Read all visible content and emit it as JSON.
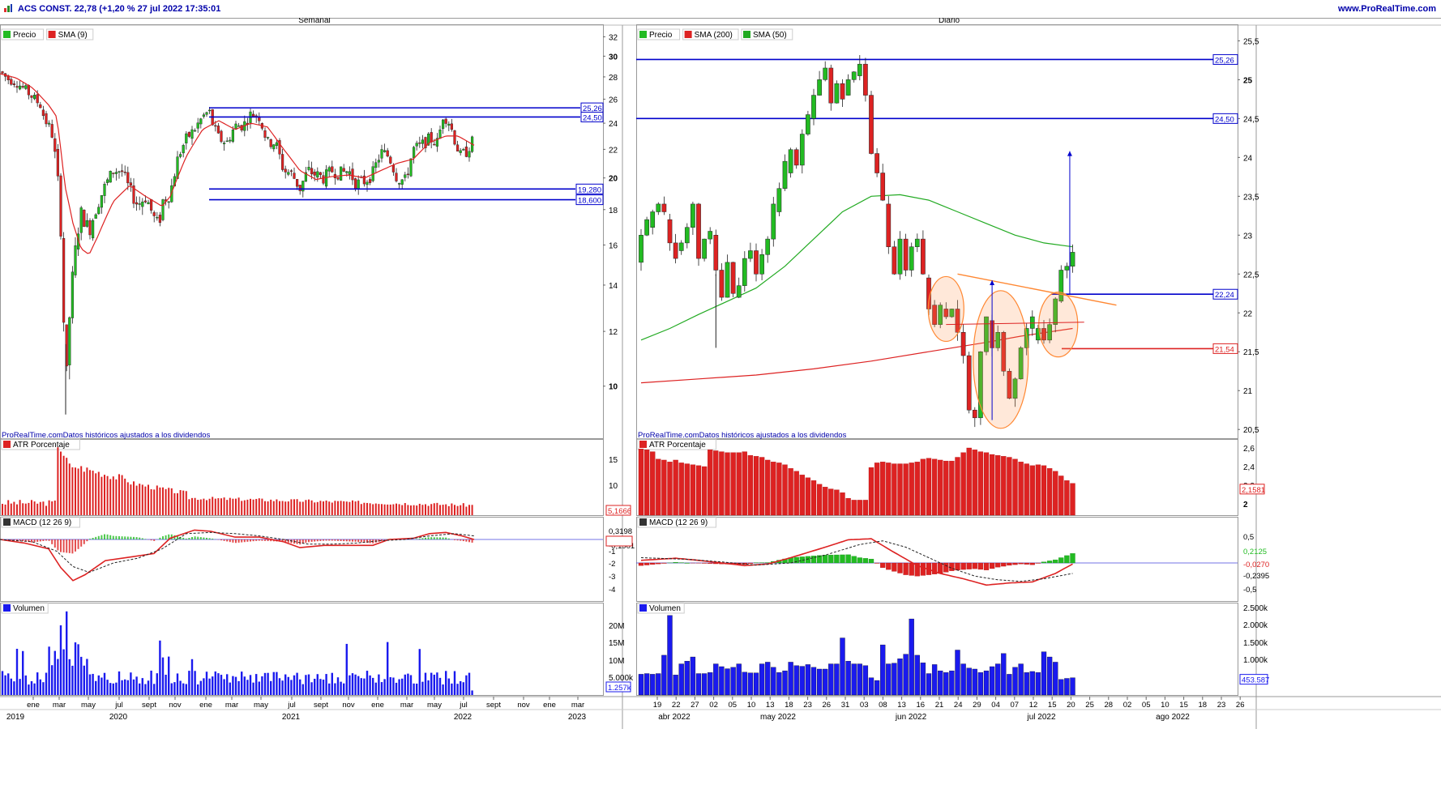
{
  "header": {
    "title": "ACS CONST. 22,78 (+1,20 % 27 jul 2022 17:35:01",
    "site": "www.ProRealTime.com"
  },
  "colors": {
    "up": "#22bb22",
    "down": "#dd2222",
    "sma_red": "#dd2222",
    "sma_green": "#22aa22",
    "levels": "#0000cc",
    "volume": "#1a1aee",
    "orange": "#ff8833"
  },
  "left_panel": {
    "title": "Semanal",
    "legend": [
      "Precio",
      "SMA (9)"
    ],
    "source": "ProRealTime.comDatos históricos ajustados a los dividendos",
    "price_ticks": [
      "32",
      "30",
      "28",
      "26",
      "24",
      "22",
      "20",
      "18",
      "16",
      "14",
      "12",
      "10"
    ],
    "level_labels": [
      "25,26",
      "24,50",
      "19,280",
      "18,600"
    ],
    "atr": {
      "legend": "ATR Porcentaje",
      "ticks": [
        "15",
        "10"
      ],
      "last": "5,1666"
    },
    "macd": {
      "legend": "MACD (12 26 9)",
      "ticks": [
        "0,3198",
        "0,1296",
        "-0,1901",
        "-1",
        "-2",
        "-3",
        "-4"
      ]
    },
    "volume": {
      "legend": "Volumen",
      "ticks": [
        "20M",
        "15M",
        "10M",
        "5.000k"
      ],
      "last": "1.257k"
    },
    "x_months": [
      "ene",
      "mar",
      "may",
      "jul",
      "sept",
      "nov",
      "ene",
      "mar",
      "may",
      "jul",
      "sept",
      "nov",
      "ene",
      "mar",
      "may",
      "jul",
      "sept",
      "nov",
      "ene",
      "mar"
    ],
    "x_years": [
      "2019",
      "2020",
      "2021",
      "2022",
      "2023"
    ]
  },
  "right_panel": {
    "title": "Diario",
    "legend": [
      "Precio",
      "SMA (200)",
      "SMA (50)"
    ],
    "source": "ProRealTime.comDatos históricos ajustados a los dividendos",
    "price_ticks": [
      "25,5",
      "25",
      "24,5",
      "24",
      "23,5",
      "23",
      "22,5",
      "22",
      "21,5",
      "21",
      "20,5"
    ],
    "level_labels": [
      "25,26",
      "24,50",
      "22,24",
      "21,54"
    ],
    "atr": {
      "legend": "ATR Porcentaje",
      "ticks": [
        "2,6",
        "2,4",
        "2,2",
        "2"
      ],
      "last": "2,1581"
    },
    "macd": {
      "legend": "MACD (12 26 9)",
      "ticks": [
        "0,5",
        "0,2125",
        "-0,0270",
        "-0,2395",
        "-0,5"
      ]
    },
    "volume": {
      "legend": "Volumen",
      "ticks": [
        "2.500k",
        "2.000k",
        "1.500k",
        "1.000k"
      ],
      "last": "453.587"
    },
    "x_days": [
      "19",
      "22",
      "27",
      "02",
      "05",
      "10",
      "13",
      "18",
      "23",
      "26",
      "31",
      "03",
      "08",
      "13",
      "16",
      "21",
      "24",
      "29",
      "04",
      "07",
      "12",
      "15",
      "20",
      "25",
      "28",
      "02",
      "05",
      "10",
      "15",
      "18",
      "23",
      "26"
    ],
    "x_months": [
      "abr 2022",
      "may 2022",
      "jun 2022",
      "jul 2022",
      "ago 2022"
    ]
  },
  "chart_data": [
    {
      "type": "candlestick",
      "title": "Semanal",
      "ylim": [
        8.5,
        33
      ],
      "y_scale": "log",
      "levels": [
        25.26,
        24.5,
        19.28,
        18.6
      ],
      "price_path": [
        [
          0,
          28.5
        ],
        [
          10,
          27.8
        ],
        [
          20,
          27.5
        ],
        [
          30,
          26.9
        ],
        [
          40,
          26.2
        ],
        [
          50,
          25.5
        ],
        [
          55,
          24.3
        ],
        [
          60,
          23.8
        ],
        [
          65,
          23
        ],
        [
          70,
          20.5
        ],
        [
          72,
          19.5
        ],
        [
          74,
          17.8
        ],
        [
          76,
          16
        ],
        [
          78,
          13
        ],
        [
          80,
          11.2
        ],
        [
          82,
          10.2
        ],
        [
          84,
          11
        ],
        [
          86,
          12.8
        ],
        [
          88,
          13.8
        ],
        [
          90,
          14.5
        ],
        [
          95,
          16.5
        ],
        [
          100,
          17.8
        ],
        [
          110,
          16.8
        ],
        [
          120,
          18.3
        ],
        [
          130,
          19.5
        ],
        [
          140,
          20.5
        ],
        [
          150,
          20.5
        ],
        [
          160,
          19.2
        ],
        [
          170,
          18.3
        ],
        [
          180,
          18.8
        ],
        [
          190,
          17.5
        ],
        [
          196,
          17
        ],
        [
          200,
          18.5
        ],
        [
          210,
          19
        ],
        [
          220,
          21.5
        ],
        [
          230,
          22.8
        ],
        [
          240,
          23.5
        ],
        [
          250,
          24.5
        ],
        [
          258,
          25
        ],
        [
          262,
          24
        ],
        [
          270,
          22.8
        ],
        [
          280,
          22.5
        ],
        [
          290,
          23.8
        ],
        [
          300,
          23.8
        ],
        [
          310,
          24.8
        ],
        [
          320,
          24.5
        ],
        [
          330,
          22.5
        ],
        [
          340,
          22.5
        ],
        [
          350,
          20.5
        ],
        [
          360,
          20.3
        ],
        [
          370,
          19.3
        ],
        [
          380,
          20.5
        ],
        [
          390,
          20.2
        ],
        [
          400,
          20
        ],
        [
          410,
          20.5
        ],
        [
          420,
          20.3
        ],
        [
          430,
          20.5
        ],
        [
          440,
          19.6
        ],
        [
          450,
          19.8
        ],
        [
          460,
          20.3
        ],
        [
          470,
          21.8
        ],
        [
          480,
          21.5
        ],
        [
          490,
          20
        ],
        [
          500,
          19.8
        ],
        [
          510,
          22
        ],
        [
          520,
          22.3
        ],
        [
          530,
          22.8
        ],
        [
          540,
          22.5
        ],
        [
          547,
          24.7
        ],
        [
          555,
          24
        ],
        [
          562,
          22.5
        ],
        [
          568,
          21.5
        ],
        [
          575,
          21.8
        ],
        [
          585,
          22.8
        ]
      ],
      "sma_path": [
        [
          0,
          28.3
        ],
        [
          20,
          27.9
        ],
        [
          40,
          27
        ],
        [
          60,
          25.5
        ],
        [
          70,
          24.5
        ],
        [
          80,
          19.5
        ],
        [
          90,
          17.2
        ],
        [
          100,
          15.8
        ],
        [
          110,
          15.5
        ],
        [
          120,
          16.4
        ],
        [
          140,
          18.5
        ],
        [
          160,
          19.5
        ],
        [
          180,
          18.8
        ],
        [
          200,
          18.2
        ],
        [
          210,
          18.8
        ],
        [
          230,
          21.5
        ],
        [
          250,
          23.5
        ],
        [
          270,
          24.2
        ],
        [
          290,
          23.5
        ],
        [
          310,
          24
        ],
        [
          330,
          23.7
        ],
        [
          350,
          22
        ],
        [
          370,
          20.5
        ],
        [
          390,
          19.9
        ],
        [
          410,
          20.1
        ],
        [
          430,
          20.2
        ],
        [
          450,
          20
        ],
        [
          470,
          20.5
        ],
        [
          490,
          21
        ],
        [
          510,
          21.3
        ],
        [
          530,
          22.5
        ],
        [
          550,
          23
        ],
        [
          565,
          23
        ],
        [
          585,
          22.3
        ]
      ]
    },
    {
      "type": "candlestick",
      "title": "Diario",
      "ylim": [
        20.45,
        25.65
      ],
      "levels": [
        25.26,
        24.5,
        22.24,
        21.54
      ],
      "target": {
        "from": 22.24,
        "to": 24.08
      },
      "height_measure": {
        "from": 20.62,
        "to": 22.42
      },
      "candles": [
        [
          22.65,
          23
        ],
        [
          23,
          23.2
        ],
        [
          23.1,
          23.3
        ],
        [
          23.3,
          23.4
        ],
        [
          23.4,
          23.3
        ],
        [
          23.2,
          22.9
        ],
        [
          22.9,
          22.7
        ],
        [
          22.8,
          22.9
        ],
        [
          22.9,
          23.1
        ],
        [
          23.1,
          23.4
        ],
        [
          23.4,
          22.7
        ],
        [
          22.7,
          22.95
        ],
        [
          22.95,
          23.05
        ],
        [
          23,
          22.55
        ],
        [
          22.55,
          22.2
        ],
        [
          22.2,
          22.65
        ],
        [
          22.65,
          22.25
        ],
        [
          22.2,
          22.35
        ],
        [
          22.35,
          22.7
        ],
        [
          22.7,
          22.8
        ],
        [
          22.8,
          22.5
        ],
        [
          22.5,
          22.75
        ],
        [
          22.75,
          22.95
        ],
        [
          22.95,
          23.4
        ],
        [
          23.3,
          23.6
        ],
        [
          23.6,
          23.95
        ],
        [
          23.8,
          24.1
        ],
        [
          24.1,
          23.9
        ],
        [
          23.9,
          24.3
        ],
        [
          24.3,
          24.55
        ],
        [
          24.5,
          24.8
        ],
        [
          24.8,
          25
        ],
        [
          25,
          25.15
        ],
        [
          25.15,
          24.7
        ],
        [
          24.7,
          24.95
        ],
        [
          24.95,
          24.75
        ],
        [
          24.8,
          25
        ],
        [
          25,
          25.1
        ],
        [
          25.05,
          25.2
        ],
        [
          25.2,
          24.8
        ],
        [
          24.8,
          24.05
        ],
        [
          24.05,
          23.8
        ],
        [
          23.8,
          23.45
        ],
        [
          23.4,
          22.85
        ],
        [
          22.85,
          22.5
        ],
        [
          22.5,
          22.95
        ],
        [
          22.95,
          22.55
        ],
        [
          22.55,
          22.85
        ],
        [
          22.85,
          22.95
        ],
        [
          22.95,
          22.5
        ],
        [
          22.45,
          22.05
        ],
        [
          22.1,
          21.85
        ],
        [
          21.85,
          22.1
        ],
        [
          22.05,
          21.95
        ],
        [
          21.95,
          22.05
        ],
        [
          22.05,
          21.75
        ],
        [
          21.75,
          21.45
        ],
        [
          21.45,
          20.75
        ],
        [
          20.75,
          20.65
        ],
        [
          20.65,
          21.5
        ],
        [
          21.5,
          21.95
        ],
        [
          21.9,
          21.55
        ],
        [
          21.55,
          21.75
        ],
        [
          21.75,
          21.25
        ],
        [
          21.25,
          20.9
        ],
        [
          20.9,
          21.15
        ],
        [
          21.15,
          21.55
        ],
        [
          21.55,
          21.8
        ],
        [
          21.8,
          21.95
        ],
        [
          21.65,
          21.8
        ],
        [
          21.8,
          21.65
        ],
        [
          21.65,
          21.85
        ],
        [
          21.85,
          22.18
        ],
        [
          22.15,
          22.55
        ],
        [
          22.55,
          22.6
        ],
        [
          22.6,
          22.78
        ]
      ],
      "sma200": [
        [
          0,
          21.1
        ],
        [
          10,
          21.15
        ],
        [
          20,
          21.2
        ],
        [
          30,
          21.28
        ],
        [
          40,
          21.38
        ],
        [
          50,
          21.5
        ],
        [
          60,
          21.62
        ],
        [
          66,
          21.7
        ],
        [
          75,
          21.8
        ]
      ],
      "sma50": [
        [
          0,
          21.65
        ],
        [
          5,
          21.8
        ],
        [
          10,
          21.98
        ],
        [
          15,
          22.15
        ],
        [
          20,
          22.32
        ],
        [
          25,
          22.6
        ],
        [
          30,
          22.95
        ],
        [
          35,
          23.3
        ],
        [
          40,
          23.5
        ],
        [
          45,
          23.52
        ],
        [
          50,
          23.45
        ],
        [
          55,
          23.3
        ],
        [
          60,
          23.15
        ],
        [
          65,
          23
        ],
        [
          70,
          22.9
        ],
        [
          75,
          22.85
        ]
      ]
    }
  ]
}
